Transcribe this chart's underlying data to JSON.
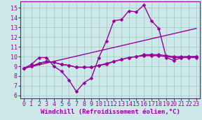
{
  "background_color": "#cce8e8",
  "grid_color": "#aacccc",
  "line_color": "#990099",
  "marker": "D",
  "markersize": 2.5,
  "linewidth": 1.0,
  "xlabel": "Windchill (Refroidissement éolien,°C)",
  "xlabel_fontsize": 6.5,
  "tick_fontsize": 6,
  "xlim": [
    -0.5,
    23.5
  ],
  "ylim": [
    5.7,
    15.7
  ],
  "yticks": [
    6,
    7,
    8,
    9,
    10,
    11,
    12,
    13,
    14,
    15
  ],
  "xticks": [
    0,
    1,
    2,
    3,
    4,
    5,
    6,
    7,
    8,
    9,
    10,
    11,
    12,
    13,
    14,
    15,
    16,
    17,
    18,
    19,
    20,
    21,
    22,
    23
  ],
  "series": [
    {
      "x": [
        0,
        1,
        2,
        3,
        4,
        5,
        6,
        7,
        8,
        9,
        10,
        11,
        12,
        13,
        14,
        15,
        16,
        17,
        18,
        19,
        20,
        21,
        22,
        23
      ],
      "y": [
        8.8,
        9.2,
        9.9,
        9.9,
        9.0,
        8.5,
        7.6,
        6.4,
        7.3,
        7.8,
        9.9,
        11.6,
        13.7,
        13.8,
        14.7,
        14.6,
        15.3,
        13.7,
        12.9,
        9.9,
        9.6,
        9.9,
        10.0,
        10.0
      ]
    },
    {
      "x": [
        0,
        1,
        2,
        3,
        4,
        5,
        6,
        7,
        8,
        9,
        10,
        11,
        12,
        13,
        14,
        15,
        16,
        17,
        18,
        19,
        20,
        21,
        22,
        23
      ],
      "y": [
        8.8,
        9.0,
        9.3,
        9.5,
        9.4,
        9.2,
        9.1,
        8.9,
        8.9,
        8.9,
        9.1,
        9.2,
        9.5,
        9.7,
        9.9,
        10.0,
        10.2,
        10.2,
        10.2,
        10.1,
        10.0,
        10.0,
        10.0,
        10.0
      ]
    },
    {
      "x": [
        0,
        1,
        2,
        3,
        4,
        5,
        6,
        7,
        8,
        9,
        10,
        11,
        12,
        13,
        14,
        15,
        16,
        17,
        18,
        19,
        20,
        21,
        22,
        23
      ],
      "y": [
        8.8,
        9.0,
        9.3,
        9.5,
        9.4,
        9.2,
        9.1,
        8.9,
        8.9,
        8.9,
        9.1,
        9.3,
        9.5,
        9.7,
        9.9,
        10.0,
        10.1,
        10.1,
        10.1,
        10.0,
        9.9,
        9.9,
        9.9,
        9.9
      ]
    },
    {
      "x": [
        0,
        23
      ],
      "y": [
        8.8,
        12.9
      ]
    }
  ]
}
